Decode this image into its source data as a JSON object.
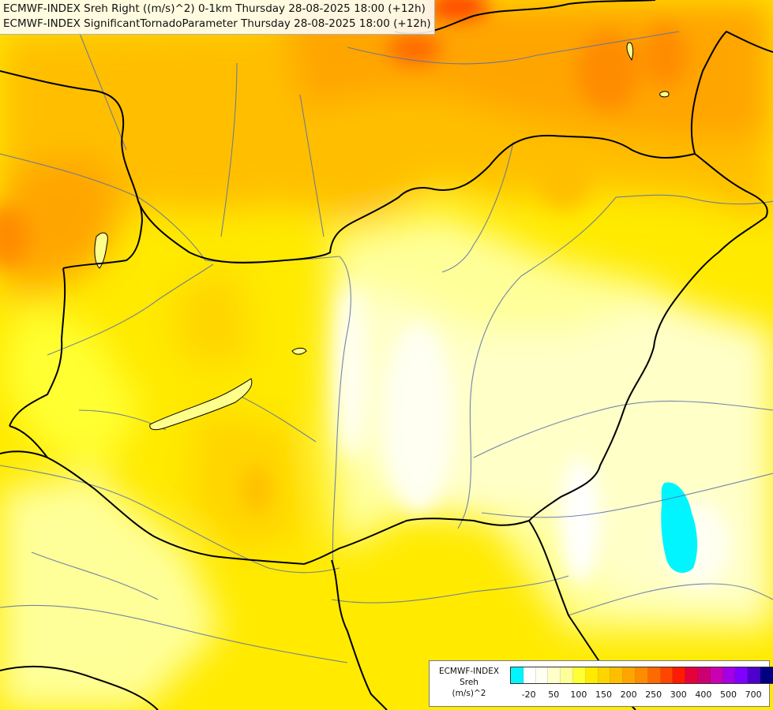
{
  "title": {
    "line1": "ECMWF-INDEX Sreh Right ((m/s)^2) 0-1km Thursday 28-08-2025 18:00 (+12h)",
    "line2": "ECMWF-INDEX SignificantTornadoParameter Thursday 28-08-2025 18:00 (+12h)"
  },
  "legend": {
    "model": "ECMWF-INDEX",
    "parameter": "Sreh",
    "unit": "(m/s)^2",
    "swatches": [
      {
        "color": "#00f5ff"
      },
      {
        "color": "#ffffff"
      },
      {
        "color": "#fffff2"
      },
      {
        "color": "#ffffc8"
      },
      {
        "color": "#ffff99"
      },
      {
        "color": "#ffff33"
      },
      {
        "color": "#ffea00"
      },
      {
        "color": "#ffd500"
      },
      {
        "color": "#ffbf00"
      },
      {
        "color": "#ffa500"
      },
      {
        "color": "#ff8c00"
      },
      {
        "color": "#ff6a00"
      },
      {
        "color": "#ff4500"
      },
      {
        "color": "#ff1a00"
      },
      {
        "color": "#e6003c"
      },
      {
        "color": "#cc0073"
      },
      {
        "color": "#cc00b3"
      },
      {
        "color": "#a300e6"
      },
      {
        "color": "#7f00ff"
      },
      {
        "color": "#4d00cc"
      },
      {
        "color": "#000080"
      }
    ],
    "ticks": [
      {
        "label": "-20",
        "slot": 1
      },
      {
        "label": "50",
        "slot": 3
      },
      {
        "label": "100",
        "slot": 5
      },
      {
        "label": "150",
        "slot": 7
      },
      {
        "label": "200",
        "slot": 9
      },
      {
        "label": "250",
        "slot": 11
      },
      {
        "label": "300",
        "slot": 13
      },
      {
        "label": "400",
        "slot": 15
      },
      {
        "label": "500",
        "slot": 17
      },
      {
        "label": "700",
        "slot": 19
      }
    ]
  },
  "colors": {
    "border_line": "#000000",
    "river_line": "#5a6fa8",
    "lake_fill": "#ffff8c"
  }
}
